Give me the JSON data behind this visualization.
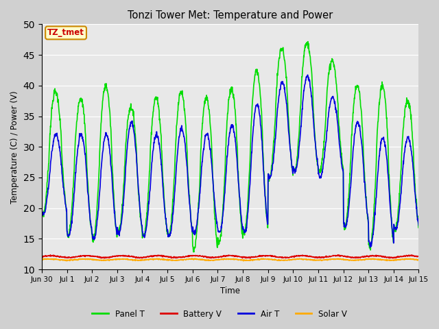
{
  "title": "Tonzi Tower Met: Temperature and Power",
  "xlabel": "Time",
  "ylabel": "Temperature (C) / Power (V)",
  "ylim": [
    10,
    50
  ],
  "yticks": [
    10,
    15,
    20,
    25,
    30,
    35,
    40,
    45,
    50
  ],
  "plot_bg_color": "#e8e8e8",
  "fig_bg_color": "#d0d0d0",
  "legend_label": "TZ_tmet",
  "legend_box_color": "#ffffcc",
  "legend_box_edge": "#cc8800",
  "legend_text_color": "#cc0000",
  "series": {
    "panel_T": {
      "label": "Panel T",
      "color": "#00dd00",
      "lw": 1.2
    },
    "battery_V": {
      "label": "Battery V",
      "color": "#dd0000",
      "lw": 1.2
    },
    "air_T": {
      "label": "Air T",
      "color": "#0000dd",
      "lw": 1.2
    },
    "solar_V": {
      "label": "Solar V",
      "color": "#ffaa00",
      "lw": 1.2
    }
  },
  "xticklabels": [
    "Jun 30",
    "Jul 1",
    "Jul 2",
    "Jul 3",
    "Jul 4",
    "Jul 5",
    "Jul 6",
    "Jul 7",
    "Jul 8",
    "Jul 9",
    "Jul 10",
    "Jul 11",
    "Jul 12",
    "Jul 13",
    "Jul 14",
    "Jul 15"
  ],
  "panel_peaks": [
    39,
    38,
    40,
    36.5,
    38,
    39,
    38,
    39.5,
    42.5,
    46,
    47,
    44,
    40,
    40,
    37.5
  ],
  "panel_troughs": [
    19,
    15.5,
    15,
    16,
    15.5,
    15.5,
    13,
    14.5,
    16,
    25,
    26,
    26,
    17,
    13.5,
    16.5
  ],
  "air_peaks": [
    32,
    32,
    32,
    34,
    32,
    33,
    32,
    33.5,
    37,
    40.5,
    41.5,
    38,
    34,
    31.5,
    31.5
  ],
  "air_troughs": [
    19,
    15.5,
    15,
    16,
    15.5,
    15.5,
    16,
    16,
    16,
    25,
    26,
    25,
    17,
    14,
    16.5
  ],
  "battery_mean": 12.1,
  "solar_mean": 11.6,
  "n_days": 15,
  "pts_per_day": 96
}
